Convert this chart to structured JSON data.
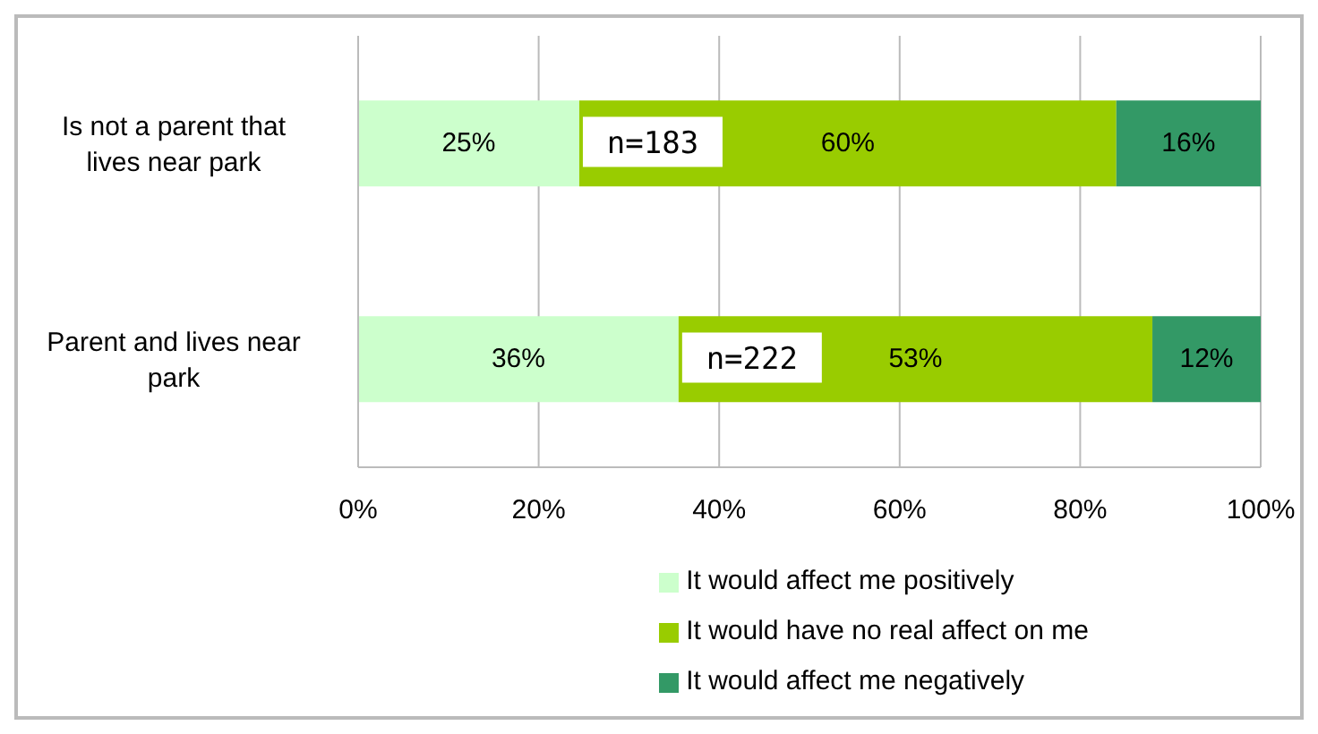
{
  "chart_data": {
    "type": "bar",
    "orientation": "horizontal",
    "stacked": true,
    "categories": [
      "Is not a parent that lives near park",
      "Parent and lives near park"
    ],
    "series": [
      {
        "name": "It would affect me positively",
        "color": "#ccffcc",
        "values": [
          24.5,
          35.5
        ],
        "value_labels": [
          "25%",
          "36%"
        ]
      },
      {
        "name": "It would have no real affect on me",
        "color": "#99cc00",
        "values": [
          59.5,
          52.5
        ],
        "value_labels": [
          "60%",
          "53%"
        ]
      },
      {
        "name": "It would affect me negatively",
        "color": "#339966",
        "values": [
          16,
          12
        ],
        "value_labels": [
          "16%",
          "12%"
        ]
      }
    ],
    "xlim": [
      0,
      100
    ],
    "xticks": [
      {
        "value": 0,
        "label": "0%"
      },
      {
        "value": 20,
        "label": "20%"
      },
      {
        "value": 40,
        "label": "40%"
      },
      {
        "value": 60,
        "label": "60%"
      },
      {
        "value": 80,
        "label": "80%"
      },
      {
        "value": 100,
        "label": "100%"
      }
    ],
    "grid": "x",
    "legend": "bottom",
    "annotations": [
      "n=183",
      "n=222"
    ]
  }
}
